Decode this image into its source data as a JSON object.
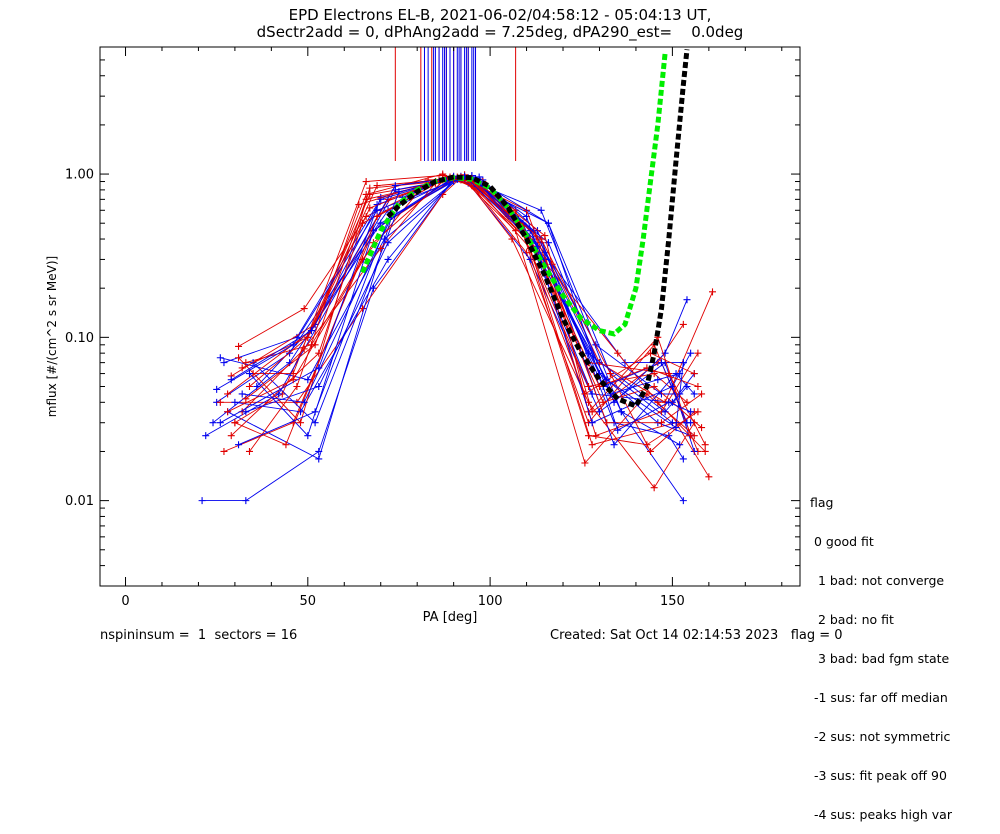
{
  "header": {
    "title_line1": "EPD Electrons EL-B, 2021-06-02/04:58:12 - 05:04:13 UT,",
    "title_line2": "dSectr2add = 0, dPhAng2add = 7.25deg, dPA290_est=    0.0deg"
  },
  "footer": {
    "left": "nspininsum =  1  sectors = 16",
    "right": "Created: Sat Oct 14 02:14:53 2023   flag = 0"
  },
  "legend": {
    "title": "flag",
    "items": [
      " 0 good fit",
      "  1 bad: not converge",
      "  2 bad: no fit",
      "  3 bad: bad fgm state",
      " -1 sus: far off median",
      " -2 sus: not symmetric",
      " -3 sus: fit peak off 90",
      " -4 sus: peaks high var"
    ]
  },
  "colors": {
    "red": "#e00000",
    "blue": "#0000ee",
    "green": "#00ee00",
    "black": "#000000"
  },
  "chart_data": {
    "type": "line",
    "xlabel": "PA [deg]",
    "ylabel": "mflux [#/(cm^2 s sr MeV)]",
    "xlim": [
      -7,
      185
    ],
    "ylim": [
      0.003,
      6.0
    ],
    "yscale": "log",
    "xticks": [
      0,
      50,
      100,
      150
    ],
    "xtick_labels": [
      "0",
      "50",
      "100",
      "150"
    ],
    "yticks": [
      0.01,
      0.1,
      1.0
    ],
    "ytick_labels": [
      "0.01",
      "0.10",
      "1.00"
    ],
    "series": [
      {
        "color": "red",
        "x": [
          31,
          49,
          66,
          85,
          90,
          95,
          110,
          127,
          145,
          157
        ],
        "y": [
          0.088,
          0.15,
          0.55,
          0.88,
          0.92,
          0.85,
          0.33,
          0.03,
          0.09,
          0.02
        ]
      },
      {
        "color": "blue",
        "x": [
          27,
          47,
          69,
          88,
          94,
          111,
          130,
          148,
          156
        ],
        "y": [
          0.07,
          0.1,
          0.65,
          0.92,
          0.88,
          0.3,
          0.035,
          0.07,
          0.02
        ]
      },
      {
        "color": "red",
        "x": [
          29,
          52,
          66,
          87,
          97,
          111,
          128,
          151,
          160
        ],
        "y": [
          0.058,
          0.12,
          0.75,
          1.0,
          0.8,
          0.35,
          0.022,
          0.03,
          0.014
        ]
      },
      {
        "color": "blue",
        "x": [
          25,
          45,
          72,
          92,
          98,
          113,
          134,
          149,
          153
        ],
        "y": [
          0.04,
          0.08,
          0.6,
          0.97,
          0.92,
          0.45,
          0.03,
          0.025,
          0.018
        ]
      },
      {
        "color": "red",
        "x": [
          33,
          51,
          65,
          83,
          93,
          106,
          127,
          145,
          156
        ],
        "y": [
          0.07,
          0.09,
          0.3,
          0.92,
          0.95,
          0.4,
          0.04,
          0.012,
          0.03
        ]
      },
      {
        "color": "blue",
        "x": [
          21,
          33,
          53,
          68,
          90,
          95,
          114,
          136,
          153
        ],
        "y": [
          0.01,
          0.01,
          0.02,
          0.2,
          0.93,
          0.9,
          0.6,
          0.035,
          0.01
        ]
      },
      {
        "color": "red",
        "x": [
          26,
          47,
          65,
          87,
          92,
          107,
          126,
          143,
          156
        ],
        "y": [
          0.04,
          0.04,
          0.15,
          0.75,
          0.95,
          0.45,
          0.017,
          0.045,
          0.025
        ]
      },
      {
        "color": "blue",
        "x": [
          28,
          53,
          73,
          90,
          95,
          112,
          137,
          153
        ],
        "y": [
          0.035,
          0.018,
          0.55,
          0.9,
          0.98,
          0.4,
          0.07,
          0.07
        ]
      },
      {
        "color": "red",
        "x": [
          27,
          46,
          68,
          91,
          98,
          114,
          128,
          146,
          153
        ],
        "y": [
          0.02,
          0.03,
          0.45,
          0.96,
          0.9,
          0.38,
          0.035,
          0.07,
          0.12
        ]
      },
      {
        "color": "blue",
        "x": [
          36,
          52,
          70,
          89,
          95,
          111,
          130,
          146,
          155
        ],
        "y": [
          0.05,
          0.12,
          0.7,
          0.94,
          0.92,
          0.4,
          0.06,
          0.03,
          0.025
        ]
      },
      {
        "color": "red",
        "x": [
          30,
          43,
          67,
          88,
          93,
          105,
          135,
          146,
          159
        ],
        "y": [
          0.03,
          0.045,
          0.75,
          0.9,
          0.94,
          0.55,
          0.08,
          0.04,
          0.02
        ]
      },
      {
        "color": "blue",
        "x": [
          26,
          50,
          71,
          91,
          98,
          116,
          133,
          150,
          155
        ],
        "y": [
          0.075,
          0.055,
          0.4,
          0.93,
          0.8,
          0.5,
          0.06,
          0.03,
          0.03
        ]
      },
      {
        "color": "red",
        "x": [
          34,
          50,
          69,
          86,
          96,
          107,
          127,
          143,
          157
        ],
        "y": [
          0.05,
          0.1,
          0.85,
          0.92,
          0.88,
          0.6,
          0.025,
          0.022,
          0.035
        ]
      },
      {
        "color": "blue",
        "x": [
          30,
          48,
          72,
          90,
          97,
          109,
          128,
          150,
          156
        ],
        "y": [
          0.04,
          0.035,
          0.3,
          0.93,
          0.96,
          0.5,
          0.045,
          0.04,
          0.06
        ]
      },
      {
        "color": "red",
        "x": [
          35,
          46,
          66,
          87,
          95,
          117,
          130,
          148,
          161
        ],
        "y": [
          0.06,
          0.06,
          0.9,
          0.98,
          0.85,
          0.28,
          0.07,
          0.04,
          0.19
        ]
      },
      {
        "color": "blue",
        "x": [
          22,
          42,
          74,
          92,
          96,
          115,
          136,
          152
        ],
        "y": [
          0.025,
          0.045,
          0.8,
          0.95,
          0.9,
          0.33,
          0.035,
          0.022
        ]
      },
      {
        "color": "red",
        "x": [
          29,
          53,
          65,
          88,
          92,
          112,
          129,
          147,
          157
        ],
        "y": [
          0.025,
          0.08,
          0.5,
          0.94,
          0.92,
          0.45,
          0.025,
          0.035,
          0.08
        ]
      },
      {
        "color": "blue",
        "x": [
          35,
          52,
          76,
          90,
          94,
          116,
          134,
          148,
          154
        ],
        "y": [
          0.07,
          0.03,
          0.72,
          0.97,
          0.95,
          0.38,
          0.04,
          0.08,
          0.17
        ]
      },
      {
        "color": "red",
        "x": [
          32,
          49,
          70,
          85,
          93,
          107,
          127,
          145,
          154
        ],
        "y": [
          0.035,
          0.085,
          0.35,
          0.88,
          0.99,
          0.55,
          0.05,
          0.06,
          0.04
        ]
      },
      {
        "color": "blue",
        "x": [
          24,
          45,
          70,
          91,
          96,
          112,
          129,
          147,
          152
        ],
        "y": [
          0.03,
          0.07,
          0.5,
          0.94,
          0.92,
          0.45,
          0.09,
          0.045,
          0.045
        ]
      },
      {
        "color": "red",
        "x": [
          28,
          51,
          67,
          89,
          96,
          115,
          127,
          146,
          155
        ],
        "y": [
          0.045,
          0.11,
          0.62,
          0.96,
          0.9,
          0.42,
          0.035,
          0.1,
          0.025
        ]
      },
      {
        "color": "blue",
        "x": [
          33,
          53,
          72,
          91,
          95,
          111,
          131,
          147,
          154
        ],
        "y": [
          0.035,
          0.05,
          0.38,
          0.93,
          0.96,
          0.45,
          0.05,
          0.07,
          0.03
        ]
      },
      {
        "color": "red",
        "x": [
          31,
          48,
          67,
          86,
          95,
          112,
          131,
          145,
          158
        ],
        "y": [
          0.075,
          0.03,
          0.82,
          0.9,
          0.94,
          0.35,
          0.04,
          0.05,
          0.028
        ]
      },
      {
        "color": "blue",
        "x": [
          34,
          50,
          68,
          89,
          97,
          110,
          128,
          150,
          155
        ],
        "y": [
          0.06,
          0.025,
          0.45,
          0.92,
          0.9,
          0.55,
          0.03,
          0.05,
          0.08
        ]
      },
      {
        "color": "red",
        "x": [
          32,
          50,
          72,
          89,
          94,
          108,
          126,
          144,
          156
        ],
        "y": [
          0.065,
          0.1,
          0.7,
          0.95,
          0.92,
          0.5,
          0.045,
          0.08,
          0.06
        ]
      },
      {
        "color": "blue",
        "x": [
          29,
          51,
          74,
          92,
          96,
          114,
          134,
          151,
          156
        ],
        "y": [
          0.055,
          0.11,
          0.85,
          0.96,
          0.9,
          0.4,
          0.022,
          0.06,
          0.045
        ]
      },
      {
        "color": "red",
        "x": [
          30,
          44,
          69,
          87,
          93,
          114,
          133,
          144,
          156
        ],
        "y": [
          0.03,
          0.022,
          0.55,
          0.92,
          0.96,
          0.4,
          0.06,
          0.02,
          0.035
        ]
      },
      {
        "color": "blue",
        "x": [
          26,
          53,
          70,
          90,
          95,
          113,
          133,
          146,
          152
        ],
        "y": [
          0.03,
          0.065,
          0.72,
          0.95,
          0.92,
          0.36,
          0.045,
          0.055,
          0.06
        ]
      },
      {
        "color": "red",
        "x": [
          28,
          46,
          68,
          88,
          95,
          109,
          127,
          149,
          159
        ],
        "y": [
          0.035,
          0.055,
          0.38,
          0.94,
          0.9,
          0.48,
          0.07,
          0.06,
          0.022
        ]
      },
      {
        "color": "blue",
        "x": [
          32,
          49,
          73,
          89,
          96,
          115,
          127,
          148,
          154
        ],
        "y": [
          0.045,
          0.04,
          0.55,
          0.92,
          0.94,
          0.3,
          0.08,
          0.035,
          0.05
        ]
      },
      {
        "color": "red",
        "x": [
          34,
          47,
          64,
          85,
          92,
          110,
          132,
          147,
          158
        ],
        "y": [
          0.02,
          0.05,
          0.65,
          0.9,
          0.96,
          0.6,
          0.03,
          0.03,
          0.045
        ]
      },
      {
        "color": "blue",
        "x": [
          25,
          46,
          69,
          93,
          97,
          116,
          135,
          149,
          155
        ],
        "y": [
          0.048,
          0.09,
          0.6,
          0.96,
          0.9,
          0.5,
          0.027,
          0.04,
          0.035
        ]
      },
      {
        "color": "red",
        "x": [
          33,
          52,
          66,
          90,
          95,
          111,
          130,
          143,
          157
        ],
        "y": [
          0.042,
          0.09,
          0.7,
          0.93,
          0.91,
          0.4,
          0.05,
          0.065,
          0.05
        ]
      },
      {
        "color": "blue",
        "x": [
          31,
          52,
          75,
          88,
          93,
          110,
          132,
          151,
          153
        ],
        "y": [
          0.022,
          0.035,
          0.78,
          0.91,
          0.97,
          0.42,
          0.055,
          0.028,
          0.07
        ]
      }
    ],
    "fit_curves": [
      {
        "color": "green",
        "x": [
          65,
          70,
          75,
          80,
          85,
          90,
          95,
          100,
          105,
          110,
          115,
          120,
          125,
          130,
          134,
          137,
          140,
          142,
          144,
          146,
          148
        ],
        "y": [
          0.25,
          0.45,
          0.66,
          0.8,
          0.9,
          0.95,
          0.93,
          0.82,
          0.62,
          0.42,
          0.27,
          0.18,
          0.13,
          0.11,
          0.105,
          0.12,
          0.2,
          0.4,
          0.9,
          2.0,
          5.5
        ]
      },
      {
        "color": "black",
        "x": [
          72,
          75,
          80,
          85,
          90,
          95,
          100,
          105,
          110,
          115,
          120,
          125,
          130,
          135,
          140,
          143,
          145,
          147,
          149,
          151,
          153,
          154
        ],
        "y": [
          0.55,
          0.64,
          0.78,
          0.9,
          0.96,
          0.95,
          0.84,
          0.62,
          0.4,
          0.24,
          0.13,
          0.08,
          0.055,
          0.042,
          0.038,
          0.05,
          0.08,
          0.15,
          0.4,
          1.2,
          3.5,
          5.8
        ]
      }
    ],
    "vertical_markers": [
      {
        "color": "red",
        "x": [
          74,
          81,
          84,
          86,
          88,
          89,
          90,
          92,
          94,
          96,
          107
        ]
      },
      {
        "color": "blue",
        "x": [
          82,
          83,
          84.5,
          85,
          86,
          87,
          87.5,
          88,
          89,
          90,
          91,
          91.5,
          92,
          93,
          93.5,
          94,
          95,
          95.5,
          96
        ]
      }
    ]
  }
}
